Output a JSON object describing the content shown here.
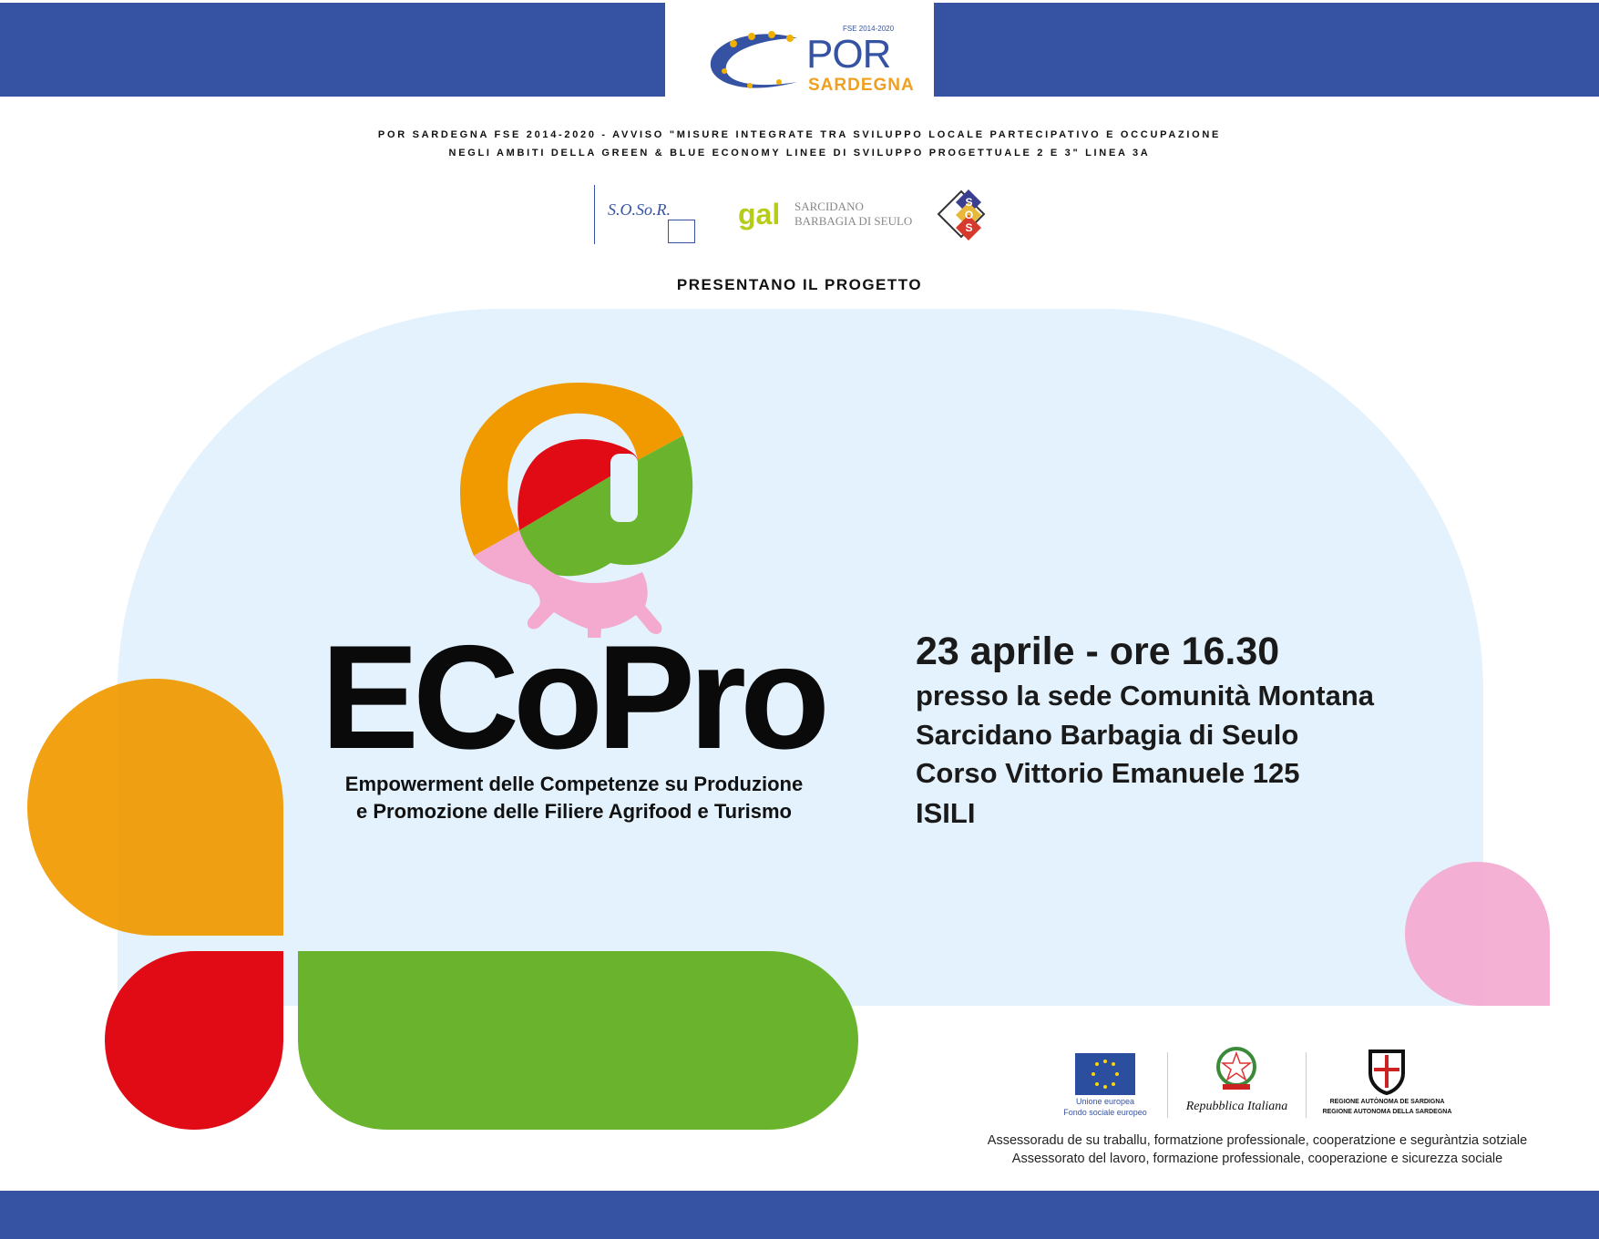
{
  "header": {
    "por_logo": {
      "small": "FSE 2014-2020",
      "big": "POR",
      "sub": "SARDEGNA"
    },
    "line1": "POR SARDEGNA FSE 2014-2020 - AVVISO \"MISURE INTEGRATE TRA SVILUPPO LOCALE PARTECIPATIVO E OCCUPAZIONE",
    "line2": "NEGLI AMBITI DELLA GREEN & BLUE ECONOMY LINEE DI SVILUPPO PROGETTUALE 2 E 3\" LINEA 3A",
    "partners": {
      "sosor": "S.O.So.R.",
      "gal_mark": "gal",
      "gal_line1": "SARCIDANO",
      "gal_line2": "BARBAGIA DI SEULO",
      "sos_letters": "SOS"
    },
    "presentano": "PRESENTANO IL PROGETTO"
  },
  "project": {
    "title": "ECoPro",
    "subtitle1": "Empowerment delle Competenze su Produzione",
    "subtitle2": "e Promozione delle Filiere Agrifood e Turismo"
  },
  "event": {
    "date": "23 aprile - ore 16.30",
    "line1": "presso la sede Comunità Montana",
    "line2": "Sarcidano Barbagia di Seulo",
    "line3": "Corso Vittorio Emanuele 125",
    "line4": "ISILI"
  },
  "footer": {
    "eu1": "Unione europea",
    "eu2": "Fondo sociale europeo",
    "italy": "Repubblica Italiana",
    "sardegna1": "REGIONE AUTÒNOMA DE SARDIGNA",
    "sardegna2": "REGIONE AUTONOMA DELLA SARDEGNA",
    "assessorato1": "Assessoradu de su traballu, formatzione professionale, cooperatzione e seguràntzia sotziale",
    "assessorato2": "Assessorato del lavoro, formazione professionale, cooperazione e sicurezza sociale"
  },
  "colors": {
    "blue": "#3653a3",
    "orange": "#f09a00",
    "red": "#e00b15",
    "green": "#6ab42d",
    "pink": "#f4a9cf",
    "light_bg": "#e3f2fd"
  }
}
